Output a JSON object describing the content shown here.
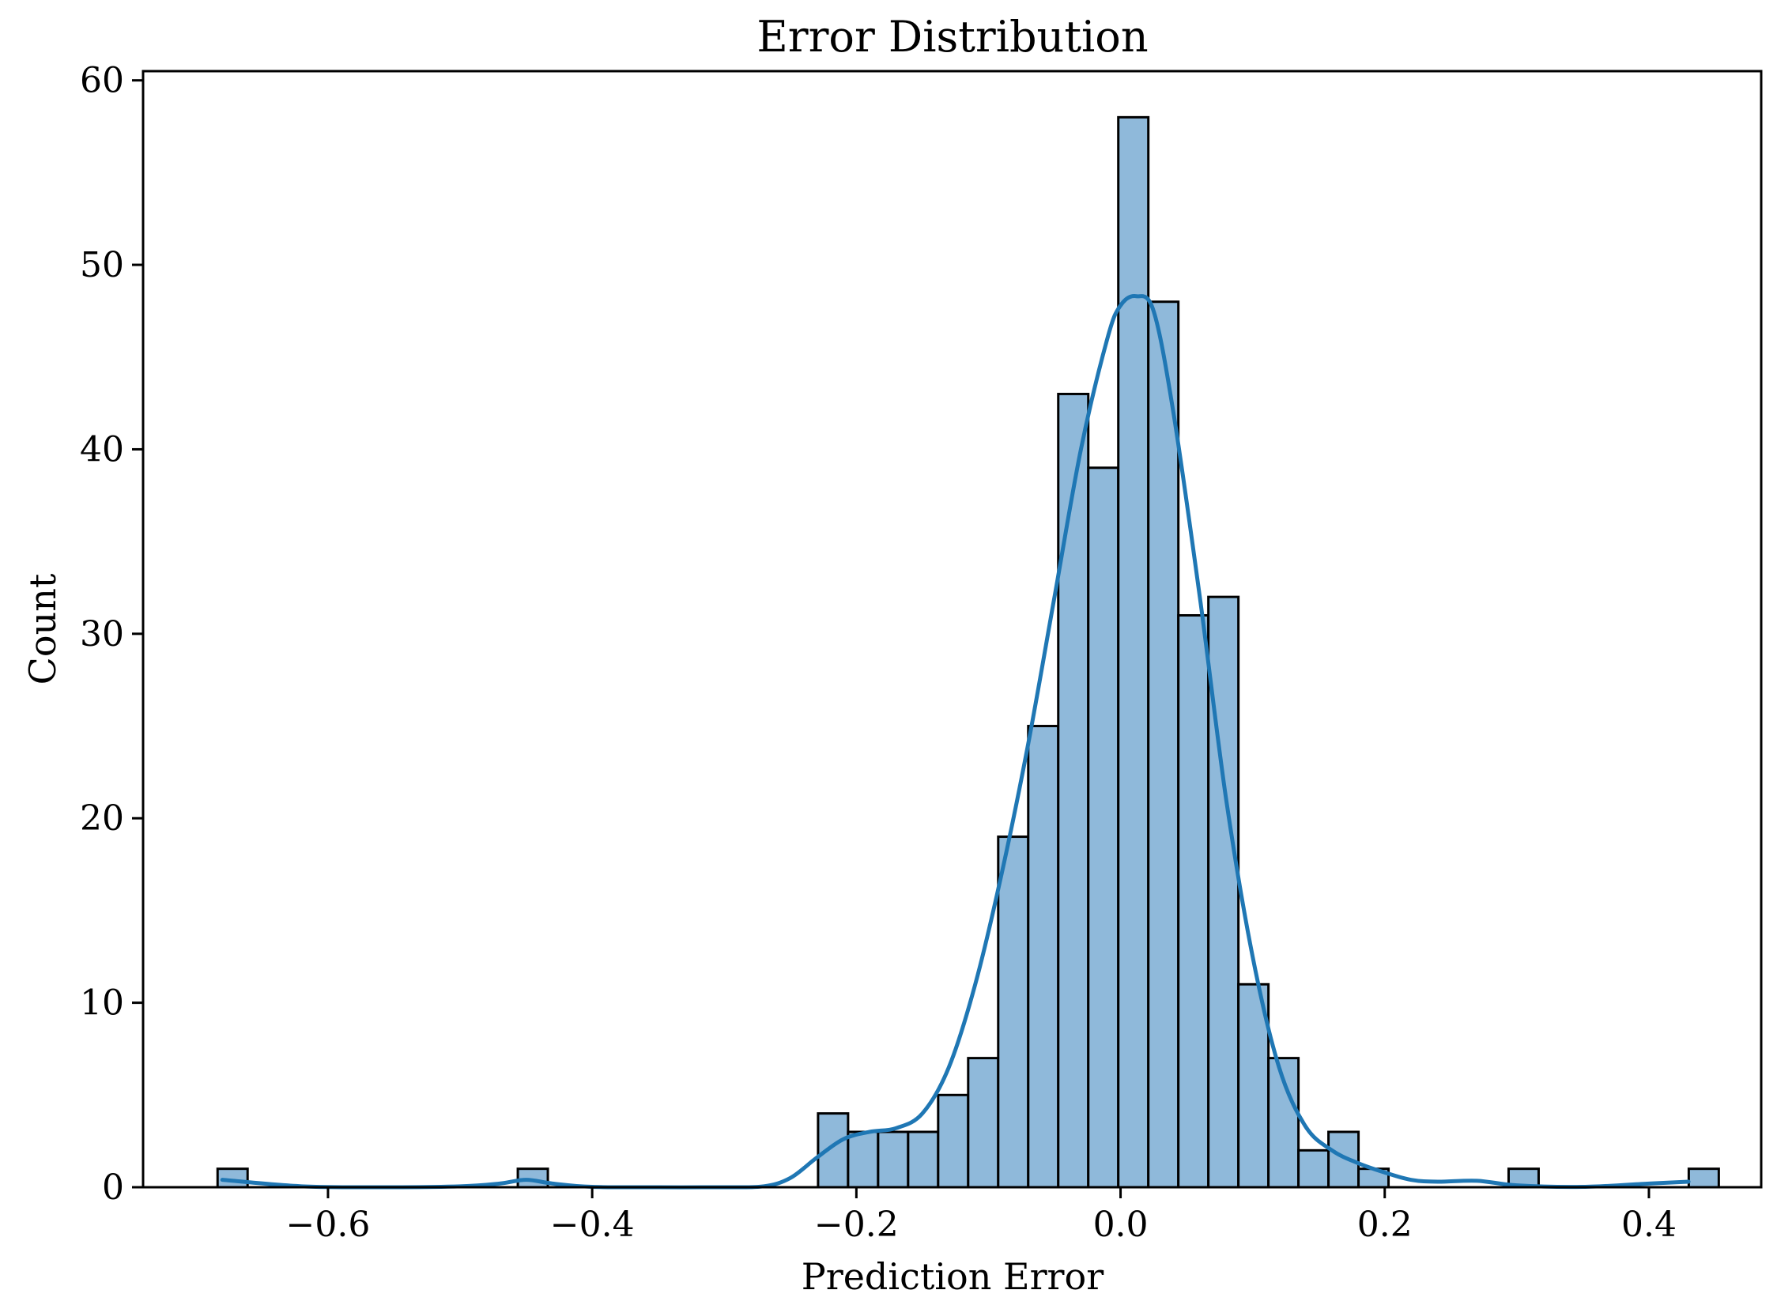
{
  "chart_data": {
    "type": "bar",
    "title": "Error Distribution",
    "xlabel": "Prediction Error",
    "ylabel": "Count",
    "xlim": [
      -0.74,
      0.485
    ],
    "ylim": [
      0,
      60.5
    ],
    "x_ticks": [
      -0.6,
      -0.4,
      -0.2,
      0.0,
      0.2,
      0.4
    ],
    "x_tick_labels": [
      "−0.6",
      "−0.4",
      "−0.2",
      "0.0",
      "0.2",
      "0.4"
    ],
    "y_ticks": [
      0,
      10,
      20,
      30,
      40,
      50,
      60
    ],
    "y_tick_labels": [
      "0",
      "10",
      "20",
      "30",
      "40",
      "50",
      "60"
    ],
    "grid": false,
    "bin_start": -0.6836,
    "bin_width": 0.02273,
    "counts": [
      1,
      0,
      0,
      0,
      0,
      0,
      0,
      0,
      0,
      0,
      1,
      0,
      0,
      0,
      0,
      0,
      0,
      0,
      0,
      0,
      4,
      3,
      3,
      3,
      5,
      7,
      19,
      25,
      43,
      39,
      58,
      48,
      31,
      32,
      11,
      7,
      2,
      3,
      1,
      0,
      0,
      0,
      0,
      1,
      0,
      0,
      0,
      0,
      0,
      1
    ],
    "kde": {
      "x": [
        -0.68,
        -0.62,
        -0.56,
        -0.5,
        -0.47,
        -0.45,
        -0.43,
        -0.4,
        -0.35,
        -0.3,
        -0.27,
        -0.25,
        -0.23,
        -0.21,
        -0.19,
        -0.17,
        -0.15,
        -0.13,
        -0.11,
        -0.09,
        -0.07,
        -0.05,
        -0.03,
        -0.01,
        0.0,
        0.012,
        0.025,
        0.04,
        0.06,
        0.08,
        0.1,
        0.12,
        0.14,
        0.16,
        0.18,
        0.2,
        0.22,
        0.24,
        0.27,
        0.3,
        0.35,
        0.4,
        0.43
      ],
      "y": [
        0.4,
        0.05,
        0.0,
        0.05,
        0.2,
        0.4,
        0.2,
        0.02,
        0.0,
        0.0,
        0.05,
        0.5,
        1.6,
        2.6,
        3.0,
        3.2,
        4.0,
        6.5,
        11.0,
        17.0,
        24.0,
        32.0,
        40.0,
        46.0,
        47.8,
        48.3,
        47.5,
        42.0,
        32.0,
        21.0,
        12.5,
        6.5,
        3.3,
        2.0,
        1.3,
        0.8,
        0.4,
        0.3,
        0.35,
        0.1,
        0.02,
        0.2,
        0.3
      ]
    },
    "colors": {
      "bar_fill": "#8fb9da",
      "bar_edge": "#000000",
      "kde_line": "#1f77b4"
    }
  }
}
